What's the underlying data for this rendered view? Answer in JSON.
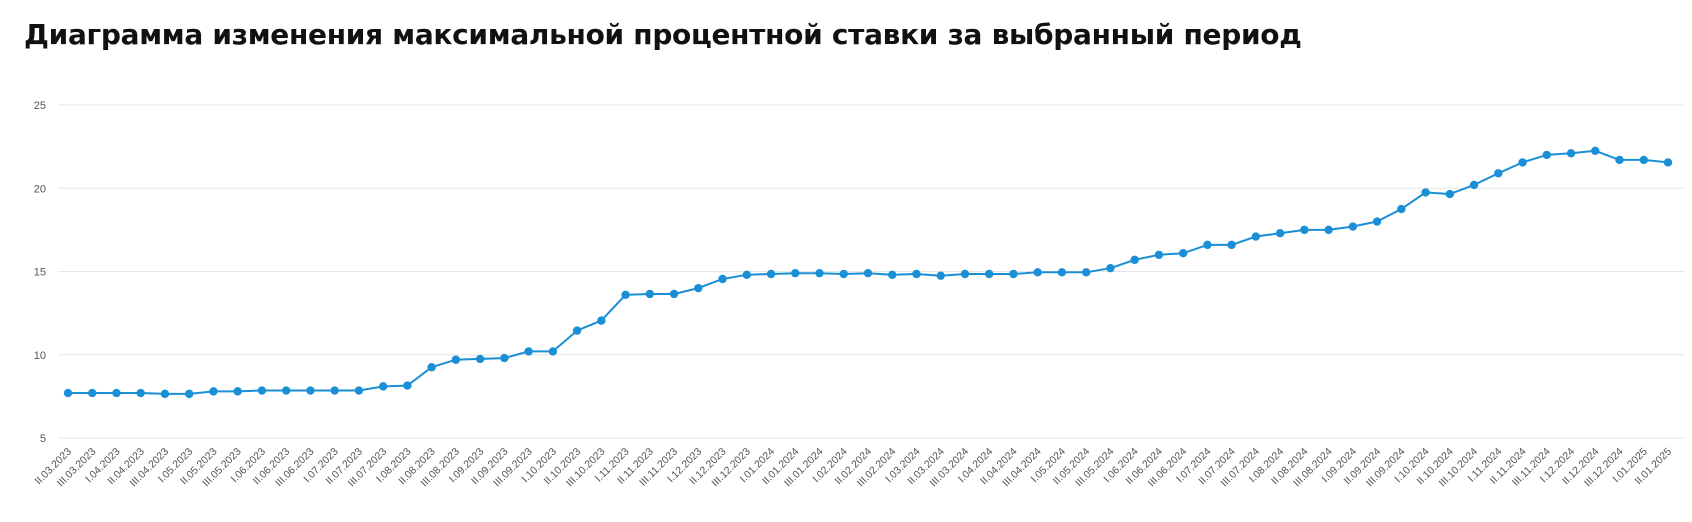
{
  "title": "Диаграмма изменения максимальной процентной ставки за выбранный период",
  "chart_data": {
    "type": "line",
    "title": "Диаграмма изменения максимальной процентной ставки за выбранный период",
    "xlabel": "",
    "ylabel": "",
    "ylim": [
      5,
      25
    ],
    "yticks": [
      5,
      10,
      15,
      20,
      25
    ],
    "grid": true,
    "line_color": "#1a8fd6",
    "categories": [
      "II.03.2023",
      "III.03.2023",
      "I.04.2023",
      "II.04.2023",
      "III.04.2023",
      "I.05.2023",
      "II.05.2023",
      "III.05.2023",
      "I.06.2023",
      "II.06.2023",
      "III.06.2023",
      "I.07.2023",
      "II.07.2023",
      "III.07.2023",
      "I.08.2023",
      "II.08.2023",
      "III.08.2023",
      "I.09.2023",
      "II.09.2023",
      "III.09.2023",
      "I.10.2023",
      "II.10.2023",
      "III.10.2023",
      "I.11.2023",
      "II.11.2023",
      "III.11.2023",
      "I.12.2023",
      "II.12.2023",
      "III.12.2023",
      "I.01.2024",
      "II.01.2024",
      "III.01.2024",
      "I.02.2024",
      "II.02.2024",
      "III.02.2024",
      "I.03.2024",
      "II.03.2024",
      "III.03.2024",
      "I.04.2024",
      "II.04.2024",
      "III.04.2024",
      "I.05.2024",
      "II.05.2024",
      "III.05.2024",
      "I.06.2024",
      "II.06.2024",
      "III.06.2024",
      "I.07.2024",
      "II.07.2024",
      "III.07.2024",
      "I.08.2024",
      "II.08.2024",
      "III.08.2024",
      "I.09.2024",
      "II.09.2024",
      "III.09.2024",
      "I.10.2024",
      "II.10.2024",
      "III.10.2024",
      "I.11.2024",
      "II.11.2024",
      "III.11.2024",
      "I.12.2024",
      "II.12.2024",
      "III.12.2024",
      "I.01.2025",
      "II.01.2025"
    ],
    "values": [
      7.7,
      7.7,
      7.7,
      7.7,
      7.65,
      7.65,
      7.8,
      7.8,
      7.85,
      7.85,
      7.85,
      7.85,
      7.85,
      8.1,
      8.15,
      9.25,
      9.7,
      9.75,
      9.8,
      10.2,
      10.2,
      11.45,
      12.05,
      13.6,
      13.65,
      13.65,
      14.0,
      14.55,
      14.8,
      14.85,
      14.9,
      14.9,
      14.85,
      14.9,
      14.8,
      14.85,
      14.75,
      14.85,
      14.85,
      14.85,
      14.95,
      14.95,
      14.95,
      15.2,
      15.7,
      16.0,
      16.1,
      16.6,
      16.6,
      17.1,
      17.3,
      17.5,
      17.5,
      17.7,
      18.0,
      18.75,
      19.75,
      19.65,
      20.2,
      20.9,
      21.55,
      22.0,
      22.1,
      22.25,
      21.7,
      21.7,
      21.55
    ]
  }
}
